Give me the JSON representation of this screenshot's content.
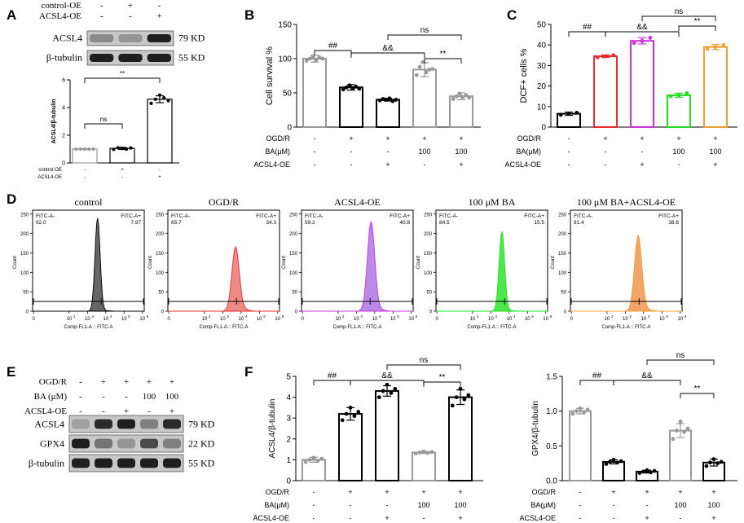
{
  "figure": {
    "panel_letters": [
      "A",
      "B",
      "C",
      "D",
      "E",
      "F"
    ],
    "colors": {
      "white": "#ffffff",
      "black": "#000000",
      "gray": "#999999",
      "red": "#ee2a2a",
      "purple": "#cc33dd",
      "green": "#22dd22",
      "orange": "#f0a030",
      "gray_fill": "#666666",
      "red_fill": "#ef8b86",
      "purple_fill": "#b98ae8",
      "green_fill": "#4de84d",
      "orange_fill": "#f2a56a"
    }
  },
  "chart_data": [
    {
      "panel": "A-blot",
      "type": "western_blot",
      "conditions": [
        {
          "label": "control-OE",
          "marks": [
            "-",
            "+",
            "-"
          ]
        },
        {
          "label": "ACSL4-OE",
          "marks": [
            "-",
            "-",
            "+"
          ]
        }
      ],
      "bands": [
        {
          "protein": "ACSL4",
          "size": "79 KD",
          "intensities": [
            0.45,
            0.4,
            0.95
          ]
        },
        {
          "protein": "β-tubulin",
          "size": "55 KD",
          "intensities": [
            0.95,
            0.95,
            0.95
          ]
        }
      ]
    },
    {
      "panel": "A",
      "type": "bar",
      "ylabel": "ACSL4/β-tubulin",
      "ylim": [
        0,
        6
      ],
      "yticks": [
        0,
        2,
        4,
        6
      ],
      "values": [
        1.0,
        1.05,
        4.6
      ],
      "errors": [
        0.03,
        0.08,
        0.25
      ],
      "points": [
        [
          1,
          1,
          1,
          1,
          1
        ],
        [
          0.98,
          1.1,
          1.05,
          1.0,
          1.08
        ],
        [
          4.3,
          4.6,
          4.9,
          4.7,
          4.5
        ]
      ],
      "colors": [
        "#999999",
        "#000000",
        "#000000"
      ],
      "conditions": [
        {
          "label": "control-OE",
          "marks": [
            "-",
            "+",
            "-"
          ]
        },
        {
          "label": "ACSL4-OE",
          "marks": [
            "-",
            "-",
            "+"
          ]
        }
      ],
      "significance": [
        {
          "from": 0,
          "to": 1,
          "label": "ns"
        },
        {
          "from": 0,
          "to": 2,
          "label": "**"
        }
      ]
    },
    {
      "panel": "B",
      "type": "bar",
      "ylabel": "Cell survival %",
      "ylim": [
        0,
        150
      ],
      "yticks": [
        0,
        50,
        100,
        150
      ],
      "values": [
        100,
        58,
        40,
        84,
        45
      ],
      "errors": [
        5,
        4,
        2,
        10,
        5
      ],
      "points": [
        [
          97,
          100,
          103,
          98,
          102,
          100
        ],
        [
          55,
          58,
          61,
          57,
          59,
          56
        ],
        [
          39,
          41,
          40,
          42,
          38,
          40
        ],
        [
          76,
          88,
          95,
          80,
          84,
          85
        ],
        [
          41,
          45,
          49,
          44,
          47,
          43
        ]
      ],
      "colors": [
        "#999999",
        "#000000",
        "#000000",
        "#999999",
        "#999999"
      ],
      "conditions": [
        {
          "label": "OGD/R",
          "marks": [
            "-",
            "+",
            "+",
            "+",
            "+"
          ]
        },
        {
          "label": "BA(μM)",
          "marks": [
            "-",
            "-",
            "-",
            "100",
            "100"
          ]
        },
        {
          "label": "ACSL4-OE",
          "marks": [
            "-",
            "-",
            "+",
            "-",
            "+"
          ]
        }
      ],
      "significance": [
        {
          "from": 0,
          "to": 1,
          "label": "##"
        },
        {
          "from": 1,
          "to": 3,
          "label": "&&"
        },
        {
          "from": 3,
          "to": 4,
          "label": "**"
        },
        {
          "from": 2,
          "to": 4,
          "label": "ns"
        }
      ]
    },
    {
      "panel": "C",
      "type": "bar",
      "ylabel": "DCF+ cells %",
      "ylim": [
        0,
        50
      ],
      "yticks": [
        0,
        10,
        20,
        30,
        40,
        50
      ],
      "values": [
        6.5,
        34.5,
        42,
        15.5,
        39
      ],
      "errors": [
        0.8,
        0.6,
        1.5,
        1.0,
        1.2
      ],
      "points": [
        [
          6,
          6.5,
          7
        ],
        [
          34,
          34.5,
          35
        ],
        [
          41,
          42,
          43.5
        ],
        [
          15,
          15.5,
          16.5
        ],
        [
          38,
          39,
          40
        ]
      ],
      "colors": [
        "#000000",
        "#ee2a2a",
        "#cc33dd",
        "#22dd22",
        "#f0a030"
      ],
      "conditions": [
        {
          "label": "OGD/R",
          "marks": [
            "-",
            "+",
            "+",
            "+",
            "+"
          ]
        },
        {
          "label": "BA(μM)",
          "marks": [
            "-",
            "-",
            "-",
            "100",
            "100"
          ]
        },
        {
          "label": "ACSL4-OE",
          "marks": [
            "-",
            "-",
            "+",
            "-",
            "+"
          ]
        }
      ],
      "significance": [
        {
          "from": 0,
          "to": 1,
          "label": "##"
        },
        {
          "from": 1,
          "to": 3,
          "label": "&&"
        },
        {
          "from": 3,
          "to": 4,
          "label": "**"
        },
        {
          "from": 2,
          "to": 4,
          "label": "ns"
        }
      ]
    },
    {
      "panel": "D",
      "type": "histogram",
      "ylabel": "Count",
      "xlabel": "Comp-FL1-A :: FITC-A",
      "yticks": [
        0,
        50,
        100,
        150,
        200,
        250
      ],
      "xticks": [
        0,
        2,
        3,
        4,
        5,
        6
      ],
      "gate_labels": [
        "FITC-A-",
        "FITC-A+"
      ],
      "plots": [
        {
          "title": "control",
          "neg": "92.0",
          "pos": "7.97",
          "color": "#000000",
          "fill": "#666666",
          "peak": 240,
          "center": 3.55,
          "width": 0.14
        },
        {
          "title": "OGD/R",
          "neg": "65.7",
          "pos": "34.3",
          "color": "#ee2a2a",
          "fill": "#ef8b86",
          "peak": 165,
          "center": 3.7,
          "width": 0.2
        },
        {
          "title": "ACSL4-OE",
          "neg": "59.2",
          "pos": "40.8",
          "color": "#cc33dd",
          "fill": "#b98ae8",
          "peak": 230,
          "center": 3.8,
          "width": 0.2
        },
        {
          "title": "100 μM BA",
          "neg": "84.5",
          "pos": "15.5",
          "color": "#22dd22",
          "fill": "#4de84d",
          "peak": 205,
          "center": 3.6,
          "width": 0.15
        },
        {
          "title": "100 μM BA+ACSL4-OE",
          "neg": "61.4",
          "pos": "38.6",
          "color": "#f0a030",
          "fill": "#f2a56a",
          "peak": 195,
          "center": 3.7,
          "width": 0.2
        }
      ]
    },
    {
      "panel": "E-blot",
      "type": "western_blot",
      "conditions": [
        {
          "label": "OGD/R",
          "marks": [
            "-",
            "+",
            "+",
            "+",
            "+"
          ]
        },
        {
          "label": "BA (μM)",
          "marks": [
            "-",
            "-",
            "-",
            "100",
            "100"
          ]
        },
        {
          "label": "ACSL4-OE",
          "marks": [
            "-",
            "-",
            "+",
            "-",
            "+"
          ]
        }
      ],
      "bands": [
        {
          "protein": "ACSL4",
          "size": "79 KD",
          "intensities": [
            0.35,
            0.9,
            0.95,
            0.5,
            0.9
          ]
        },
        {
          "protein": "GPX4",
          "size": "22 KD",
          "intensities": [
            0.95,
            0.55,
            0.4,
            0.75,
            0.5
          ]
        },
        {
          "protein": "β-tubulin",
          "size": "55 KD",
          "intensities": [
            0.95,
            0.95,
            0.95,
            0.95,
            0.95
          ]
        }
      ]
    },
    {
      "panel": "F-left",
      "type": "bar",
      "ylabel": "ACSL4/β-tubulin",
      "ylim": [
        0,
        5
      ],
      "yticks": [
        0,
        1,
        2,
        3,
        4,
        5
      ],
      "values": [
        1.0,
        3.2,
        4.3,
        1.35,
        4.0
      ],
      "errors": [
        0.12,
        0.3,
        0.25,
        0.05,
        0.35
      ],
      "points": [
        [
          0.9,
          1.0,
          1.1,
          0.95,
          1.05
        ],
        [
          2.9,
          3.2,
          3.5,
          3.1,
          3.3
        ],
        [
          4.0,
          4.3,
          4.6,
          4.2,
          4.4
        ],
        [
          1.3,
          1.35,
          1.4,
          1.33,
          1.37
        ],
        [
          3.6,
          4.0,
          4.4,
          3.9,
          4.1
        ]
      ],
      "colors": [
        "#999999",
        "#000000",
        "#000000",
        "#999999",
        "#000000"
      ],
      "conditions": [
        {
          "label": "OGD/R",
          "marks": [
            "-",
            "+",
            "+",
            "+",
            "+"
          ]
        },
        {
          "label": "BA(μM)",
          "marks": [
            "-",
            "-",
            "-",
            "100",
            "100"
          ]
        },
        {
          "label": "ACSL4-OE",
          "marks": [
            "-",
            "-",
            "+",
            "-",
            "+"
          ]
        }
      ],
      "significance": [
        {
          "from": 0,
          "to": 1,
          "label": "##"
        },
        {
          "from": 1,
          "to": 3,
          "label": "&&"
        },
        {
          "from": 3,
          "to": 4,
          "label": "**"
        },
        {
          "from": 2,
          "to": 4,
          "label": "ns"
        }
      ]
    },
    {
      "panel": "F-right",
      "type": "bar",
      "ylabel": "GPX4/β-tubulin",
      "ylim": [
        0,
        1.5
      ],
      "yticks": [
        0.0,
        0.5,
        1.0,
        1.5
      ],
      "values": [
        1.0,
        0.27,
        0.13,
        0.72,
        0.26
      ],
      "errors": [
        0.04,
        0.03,
        0.02,
        0.1,
        0.05
      ],
      "points": [
        [
          0.96,
          1.0,
          1.04,
          0.98,
          1.02
        ],
        [
          0.24,
          0.27,
          0.3,
          0.26,
          0.28
        ],
        [
          0.11,
          0.13,
          0.15,
          0.12,
          0.14
        ],
        [
          0.6,
          0.72,
          0.85,
          0.7,
          0.75
        ],
        [
          0.21,
          0.26,
          0.31,
          0.25,
          0.27
        ]
      ],
      "colors": [
        "#999999",
        "#000000",
        "#000000",
        "#999999",
        "#000000"
      ],
      "conditions": [
        {
          "label": "OGD/R",
          "marks": [
            "-",
            "+",
            "+",
            "+",
            "+"
          ]
        },
        {
          "label": "BA(μM)",
          "marks": [
            "-",
            "-",
            "-",
            "100",
            "100"
          ]
        },
        {
          "label": "ACSL4-OE",
          "marks": [
            "-",
            "-",
            "+",
            "-",
            "+"
          ]
        }
      ],
      "significance": [
        {
          "from": 0,
          "to": 1,
          "label": "##"
        },
        {
          "from": 1,
          "to": 3,
          "label": "&&"
        },
        {
          "from": 3,
          "to": 4,
          "label": "**"
        },
        {
          "from": 2,
          "to": 4,
          "label": "ns"
        }
      ]
    }
  ]
}
